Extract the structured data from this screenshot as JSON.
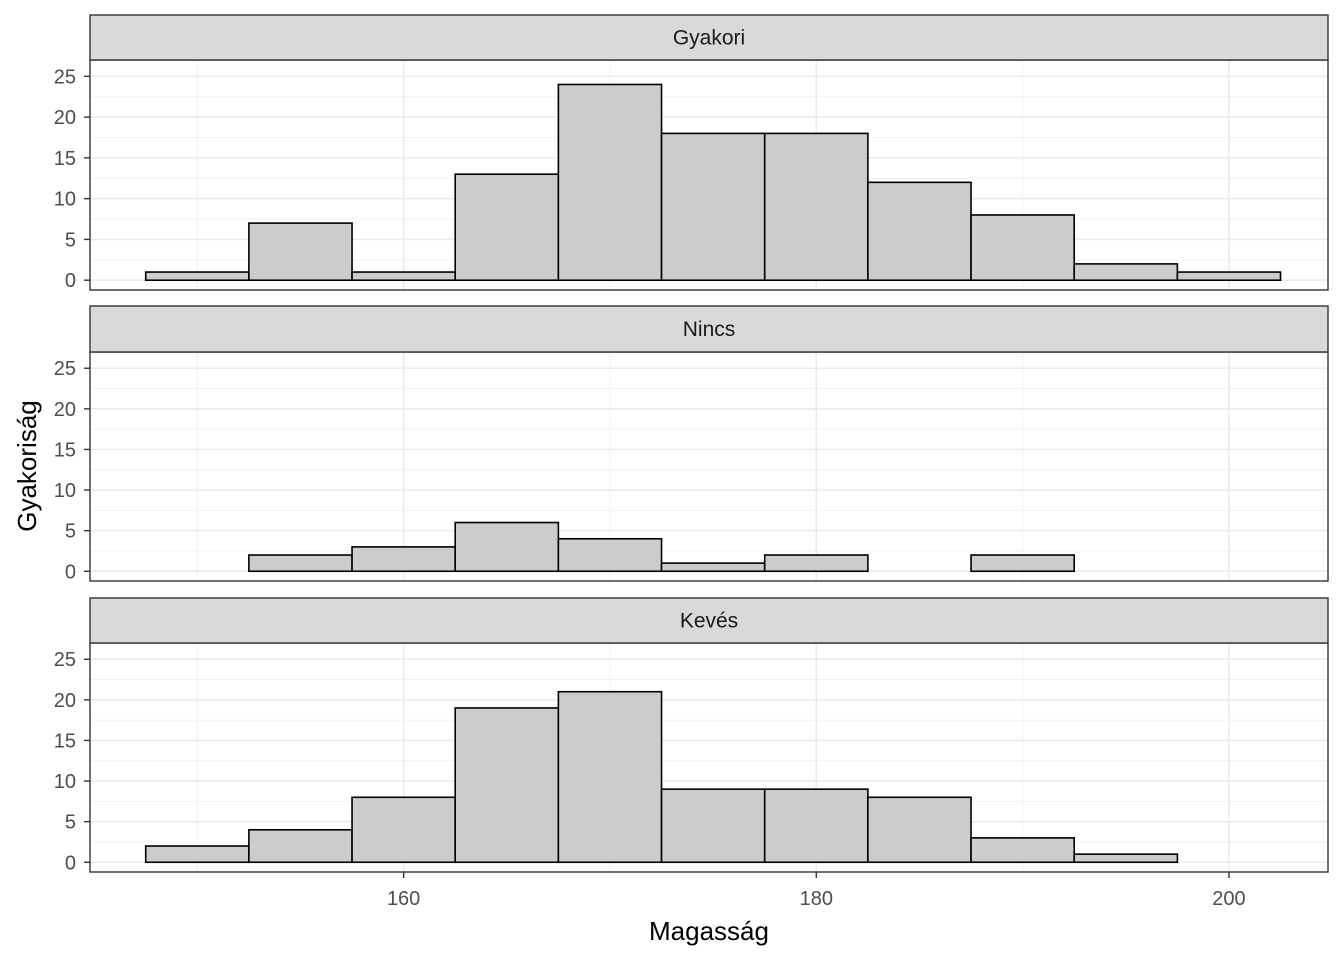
{
  "chart_data": {
    "type": "bar",
    "xlabel": "Magasság",
    "ylabel": "Gyakoriság",
    "ylim": [
      0,
      25
    ],
    "yticks": [
      0,
      5,
      10,
      15,
      20,
      25
    ],
    "xlim": [
      144.8,
      204.8
    ],
    "xticks": [
      160,
      180,
      200
    ],
    "bin_width": 5,
    "bin_starts": [
      147.5,
      152.5,
      157.5,
      162.5,
      167.5,
      172.5,
      177.5,
      182.5,
      187.5,
      192.5,
      197.5
    ],
    "grid": true,
    "bar_fill": "#cccccc",
    "bar_stroke": "#000000",
    "strip_fill": "#d9d9d9",
    "panels": [
      {
        "name": "Gyakori",
        "values": [
          1,
          7,
          1,
          13,
          24,
          18,
          18,
          12,
          8,
          2,
          1
        ]
      },
      {
        "name": "Nincs",
        "values": [
          0,
          2,
          3,
          6,
          4,
          1,
          2,
          0,
          2,
          0,
          0
        ]
      },
      {
        "name": "Kevés",
        "values": [
          2,
          4,
          8,
          19,
          21,
          9,
          9,
          8,
          3,
          1,
          0
        ]
      }
    ]
  }
}
